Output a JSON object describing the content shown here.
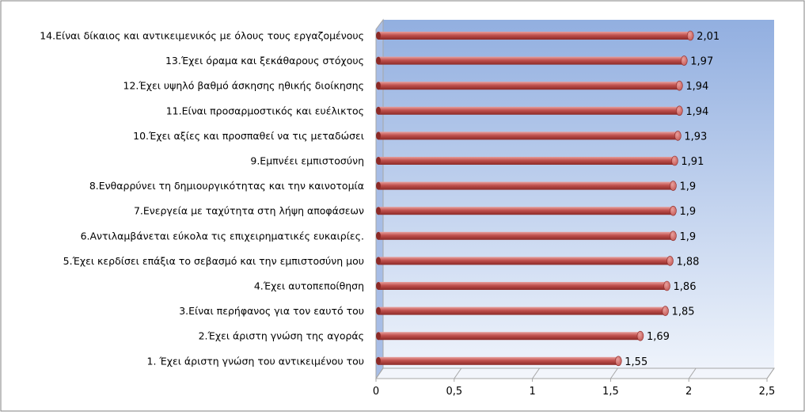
{
  "chart_data": {
    "type": "bar",
    "orientation": "horizontal",
    "title": "",
    "xlabel": "",
    "ylabel": "",
    "xlim": [
      0,
      2.5
    ],
    "grid": false,
    "legend": "none",
    "ticks": [
      "0",
      "0,5",
      "1",
      "1,5",
      "2",
      "2,5"
    ],
    "tick_values": [
      0,
      0.5,
      1,
      1.5,
      2,
      2.5
    ],
    "categories": [
      "14.Είναι δίκαιος και αντικειμενικός με όλους τους εργαζομένους",
      "13.Έχει όραμα και ξεκάθαρους στόχους",
      "12.Έχει υψηλό βαθμό άσκησης ηθικής διοίκησης",
      "11.Είναι προσαρμοστικός και ευέλικτος",
      "10.Έχει αξίες και προσπαθεί να τις μεταδώσει",
      "9.Εμπνέει εμπιστοσύνη",
      "8.Ενθαρρύνει τη δημιουργικότητας και την καινοτομία",
      "7.Ενεργεία με ταχύτητα στη λήψη αποφάσεων",
      "6.Αντιλαμβάνεται εύκολα τις επιχειρηματικές ευκαιρίες.",
      "5.Έχει κερδίσει επάξια το σεβασμό και την εμπιστοσύνη μου",
      "4.Έχει αυτοπεποίθηση",
      "3.Είναι περήφανος για τον εαυτό του",
      "2.Έχει άριστη γνώση της αγοράς",
      "1. Έχει άριστη γνώση του αντικειμένου του"
    ],
    "values": [
      2.01,
      1.97,
      1.94,
      1.94,
      1.93,
      1.91,
      1.9,
      1.9,
      1.9,
      1.88,
      1.86,
      1.85,
      1.69,
      1.55
    ],
    "value_labels": [
      "2,01",
      "1,97",
      "1,94",
      "1,94",
      "1,93",
      "1,91",
      "1,9",
      "1,9",
      "1,9",
      "1,88",
      "1,86",
      "1,85",
      "1,69",
      "1,55"
    ],
    "colors": {
      "bar": "#c0504d",
      "bar_light": "#e8a09d",
      "bar_dark": "#8c2a27",
      "wall_top": "#92afe0",
      "wall_bottom": "#eef3fb",
      "axis": "#a6a6a6"
    }
  }
}
